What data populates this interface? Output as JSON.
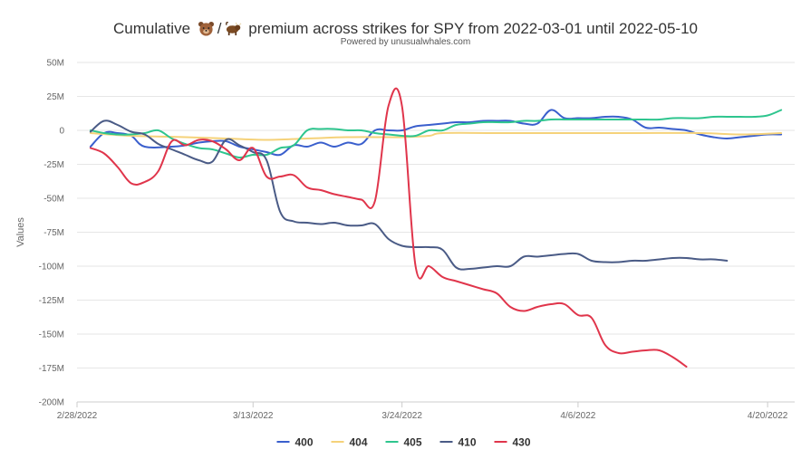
{
  "title": {
    "prefix": "Cumulative",
    "separator": "/",
    "suffix": "premium across strikes for SPY from 2022-03-01 until 2022-05-10",
    "icons": [
      "bear-icon",
      "bull-icon"
    ]
  },
  "subtitle": "Powered by unusualwhales.com",
  "chart_data": {
    "type": "line",
    "title": "Cumulative 🐻/🐂 premium across strikes for SPY from 2022-03-01 until 2022-05-10",
    "subtitle": "Powered by unusualwhales.com",
    "xlabel": "",
    "ylabel": "Values",
    "x_range": [
      "2022-02-28",
      "2022-04-22"
    ],
    "x_tick_labels": [
      "2/28/2022",
      "3/13/2022",
      "3/24/2022",
      "4/6/2022",
      "4/20/2022"
    ],
    "x_tick_dates": [
      "2022-02-28",
      "2022-03-13",
      "2022-03-24",
      "2022-04-06",
      "2022-04-20"
    ],
    "ylim": [
      -200,
      50
    ],
    "y_unit": "M",
    "y_ticks": [
      50,
      25,
      0,
      -25,
      -50,
      -75,
      -100,
      -125,
      -150,
      -175,
      -200
    ],
    "y_tick_labels": [
      "50M",
      "25M",
      "0",
      "-25M",
      "-50M",
      "-75M",
      "-100M",
      "-125M",
      "-150M",
      "-175M",
      "-200M"
    ],
    "grid": true,
    "legend_position": "bottom-center",
    "series": [
      {
        "name": "400",
        "color": "#3a5fcd",
        "points": [
          [
            "2022-03-01",
            -12
          ],
          [
            "2022-03-02",
            -2
          ],
          [
            "2022-03-03",
            -2
          ],
          [
            "2022-03-04",
            -4
          ],
          [
            "2022-03-05",
            -12
          ],
          [
            "2022-03-07",
            -12
          ],
          [
            "2022-03-08",
            -11
          ],
          [
            "2022-03-09",
            -9
          ],
          [
            "2022-03-10",
            -8
          ],
          [
            "2022-03-11",
            -8
          ],
          [
            "2022-03-12",
            -12
          ],
          [
            "2022-03-13",
            -14
          ],
          [
            "2022-03-14",
            -16
          ],
          [
            "2022-03-15",
            -18
          ],
          [
            "2022-03-16",
            -11
          ],
          [
            "2022-03-17",
            -12
          ],
          [
            "2022-03-18",
            -9
          ],
          [
            "2022-03-19",
            -12
          ],
          [
            "2022-03-20",
            -9
          ],
          [
            "2022-03-21",
            -10
          ],
          [
            "2022-03-22",
            0
          ],
          [
            "2022-03-23",
            0
          ],
          [
            "2022-03-24",
            0
          ],
          [
            "2022-03-25",
            3
          ],
          [
            "2022-03-26",
            4
          ],
          [
            "2022-03-27",
            5
          ],
          [
            "2022-03-28",
            6
          ],
          [
            "2022-03-29",
            6
          ],
          [
            "2022-03-30",
            7
          ],
          [
            "2022-03-31",
            7
          ],
          [
            "2022-04-01",
            7
          ],
          [
            "2022-04-02",
            5
          ],
          [
            "2022-04-03",
            5
          ],
          [
            "2022-04-04",
            15
          ],
          [
            "2022-04-05",
            9
          ],
          [
            "2022-04-06",
            9
          ],
          [
            "2022-04-07",
            9
          ],
          [
            "2022-04-08",
            10
          ],
          [
            "2022-04-09",
            10
          ],
          [
            "2022-04-10",
            8
          ],
          [
            "2022-04-11",
            2
          ],
          [
            "2022-04-12",
            2
          ],
          [
            "2022-04-13",
            1
          ],
          [
            "2022-04-14",
            0
          ],
          [
            "2022-04-15",
            -3
          ],
          [
            "2022-04-16",
            -5
          ],
          [
            "2022-04-17",
            -6
          ],
          [
            "2022-04-18",
            -5
          ],
          [
            "2022-04-19",
            -4
          ],
          [
            "2022-04-20",
            -3
          ],
          [
            "2022-04-21",
            -3
          ]
        ]
      },
      {
        "name": "404",
        "color": "#f5d27a",
        "points": [
          [
            "2022-03-01",
            -2
          ],
          [
            "2022-03-04",
            -4
          ],
          [
            "2022-03-08",
            -5
          ],
          [
            "2022-03-11",
            -6
          ],
          [
            "2022-03-14",
            -7
          ],
          [
            "2022-03-17",
            -6
          ],
          [
            "2022-03-20",
            -5
          ],
          [
            "2022-03-23",
            -5
          ],
          [
            "2022-03-24",
            -5
          ],
          [
            "2022-03-26",
            -4
          ],
          [
            "2022-03-27",
            -2
          ],
          [
            "2022-03-31",
            -2
          ],
          [
            "2022-04-05",
            -2
          ],
          [
            "2022-04-10",
            -2
          ],
          [
            "2022-04-15",
            -2
          ],
          [
            "2022-04-18",
            -3
          ],
          [
            "2022-04-21",
            -2
          ]
        ]
      },
      {
        "name": "405",
        "color": "#2ec58e",
        "points": [
          [
            "2022-03-01",
            0
          ],
          [
            "2022-03-02",
            -2
          ],
          [
            "2022-03-03",
            -3
          ],
          [
            "2022-03-04",
            -3
          ],
          [
            "2022-03-05",
            -2
          ],
          [
            "2022-03-06",
            0
          ],
          [
            "2022-03-07",
            -6
          ],
          [
            "2022-03-08",
            -10
          ],
          [
            "2022-03-09",
            -13
          ],
          [
            "2022-03-10",
            -14
          ],
          [
            "2022-03-11",
            -17
          ],
          [
            "2022-03-12",
            -20
          ],
          [
            "2022-03-13",
            -18
          ],
          [
            "2022-03-14",
            -18
          ],
          [
            "2022-03-15",
            -13
          ],
          [
            "2022-03-16",
            -11
          ],
          [
            "2022-03-17",
            0
          ],
          [
            "2022-03-18",
            1
          ],
          [
            "2022-03-19",
            1
          ],
          [
            "2022-03-20",
            0
          ],
          [
            "2022-03-21",
            0
          ],
          [
            "2022-03-22",
            -2
          ],
          [
            "2022-03-23",
            -3
          ],
          [
            "2022-03-24",
            -4
          ],
          [
            "2022-03-25",
            -4
          ],
          [
            "2022-03-26",
            0
          ],
          [
            "2022-03-27",
            0
          ],
          [
            "2022-03-28",
            4
          ],
          [
            "2022-03-29",
            5
          ],
          [
            "2022-03-30",
            6
          ],
          [
            "2022-03-31",
            6
          ],
          [
            "2022-04-01",
            6
          ],
          [
            "2022-04-02",
            7
          ],
          [
            "2022-04-03",
            7
          ],
          [
            "2022-04-04",
            8
          ],
          [
            "2022-04-05",
            8
          ],
          [
            "2022-04-06",
            8
          ],
          [
            "2022-04-07",
            8
          ],
          [
            "2022-04-08",
            8
          ],
          [
            "2022-04-09",
            8
          ],
          [
            "2022-04-10",
            8
          ],
          [
            "2022-04-11",
            8
          ],
          [
            "2022-04-12",
            8
          ],
          [
            "2022-04-13",
            9
          ],
          [
            "2022-04-14",
            9
          ],
          [
            "2022-04-15",
            9
          ],
          [
            "2022-04-16",
            10
          ],
          [
            "2022-04-17",
            10
          ],
          [
            "2022-04-18",
            10
          ],
          [
            "2022-04-19",
            10
          ],
          [
            "2022-04-20",
            11
          ],
          [
            "2022-04-21",
            15
          ]
        ]
      },
      {
        "name": "410",
        "color": "#4a5b86",
        "points": [
          [
            "2022-03-01",
            -1
          ],
          [
            "2022-03-02",
            7
          ],
          [
            "2022-03-03",
            4
          ],
          [
            "2022-03-04",
            -1
          ],
          [
            "2022-03-05",
            -3
          ],
          [
            "2022-03-06",
            -10
          ],
          [
            "2022-03-07",
            -14
          ],
          [
            "2022-03-08",
            -18
          ],
          [
            "2022-03-09",
            -22
          ],
          [
            "2022-03-10",
            -23
          ],
          [
            "2022-03-11",
            -7
          ],
          [
            "2022-03-12",
            -11
          ],
          [
            "2022-03-13",
            -16
          ],
          [
            "2022-03-14",
            -22
          ],
          [
            "2022-03-15",
            -60
          ],
          [
            "2022-03-16",
            -67
          ],
          [
            "2022-03-17",
            -68
          ],
          [
            "2022-03-18",
            -69
          ],
          [
            "2022-03-19",
            -68
          ],
          [
            "2022-03-20",
            -70
          ],
          [
            "2022-03-21",
            -70
          ],
          [
            "2022-03-22",
            -69
          ],
          [
            "2022-03-23",
            -80
          ],
          [
            "2022-03-24",
            -85
          ],
          [
            "2022-03-25",
            -86
          ],
          [
            "2022-03-26",
            -86
          ],
          [
            "2022-03-27",
            -88
          ],
          [
            "2022-03-28",
            -101
          ],
          [
            "2022-03-29",
            -102
          ],
          [
            "2022-03-30",
            -101
          ],
          [
            "2022-03-31",
            -100
          ],
          [
            "2022-04-01",
            -100
          ],
          [
            "2022-04-02",
            -93
          ],
          [
            "2022-04-03",
            -93
          ],
          [
            "2022-04-04",
            -92
          ],
          [
            "2022-04-05",
            -91
          ],
          [
            "2022-04-06",
            -91
          ],
          [
            "2022-04-07",
            -96
          ],
          [
            "2022-04-08",
            -97
          ],
          [
            "2022-04-09",
            -97
          ],
          [
            "2022-04-10",
            -96
          ],
          [
            "2022-04-11",
            -96
          ],
          [
            "2022-04-12",
            -95
          ],
          [
            "2022-04-13",
            -94
          ],
          [
            "2022-04-14",
            -94
          ],
          [
            "2022-04-15",
            -95
          ],
          [
            "2022-04-16",
            -95
          ],
          [
            "2022-04-17",
            -96
          ]
        ]
      },
      {
        "name": "430",
        "color": "#e0354b",
        "points": [
          [
            "2022-03-01",
            -13
          ],
          [
            "2022-03-02",
            -17
          ],
          [
            "2022-03-03",
            -27
          ],
          [
            "2022-03-04",
            -39
          ],
          [
            "2022-03-05",
            -38
          ],
          [
            "2022-03-06",
            -30
          ],
          [
            "2022-03-07",
            -8
          ],
          [
            "2022-03-08",
            -11
          ],
          [
            "2022-03-09",
            -7
          ],
          [
            "2022-03-10",
            -8
          ],
          [
            "2022-03-11",
            -14
          ],
          [
            "2022-03-12",
            -22
          ],
          [
            "2022-03-13",
            -13
          ],
          [
            "2022-03-14",
            -34
          ],
          [
            "2022-03-15",
            -34
          ],
          [
            "2022-03-16",
            -33
          ],
          [
            "2022-03-17",
            -42
          ],
          [
            "2022-03-18",
            -44
          ],
          [
            "2022-03-19",
            -47
          ],
          [
            "2022-03-20",
            -49
          ],
          [
            "2022-03-21",
            -51
          ],
          [
            "2022-03-22",
            -52
          ],
          [
            "2022-03-23",
            18
          ],
          [
            "2022-03-24",
            18
          ],
          [
            "2022-03-25",
            -100
          ],
          [
            "2022-03-26",
            -100
          ],
          [
            "2022-03-27",
            -108
          ],
          [
            "2022-03-28",
            -111
          ],
          [
            "2022-03-29",
            -114
          ],
          [
            "2022-03-30",
            -117
          ],
          [
            "2022-03-31",
            -120
          ],
          [
            "2022-04-01",
            -130
          ],
          [
            "2022-04-02",
            -133
          ],
          [
            "2022-04-03",
            -130
          ],
          [
            "2022-04-04",
            -128
          ],
          [
            "2022-04-05",
            -128
          ],
          [
            "2022-04-06",
            -136
          ],
          [
            "2022-04-07",
            -138
          ],
          [
            "2022-04-08",
            -158
          ],
          [
            "2022-04-09",
            -164
          ],
          [
            "2022-04-10",
            -163
          ],
          [
            "2022-04-11",
            -162
          ],
          [
            "2022-04-12",
            -162
          ],
          [
            "2022-04-13",
            -167
          ],
          [
            "2022-04-14",
            -174
          ]
        ]
      }
    ]
  }
}
